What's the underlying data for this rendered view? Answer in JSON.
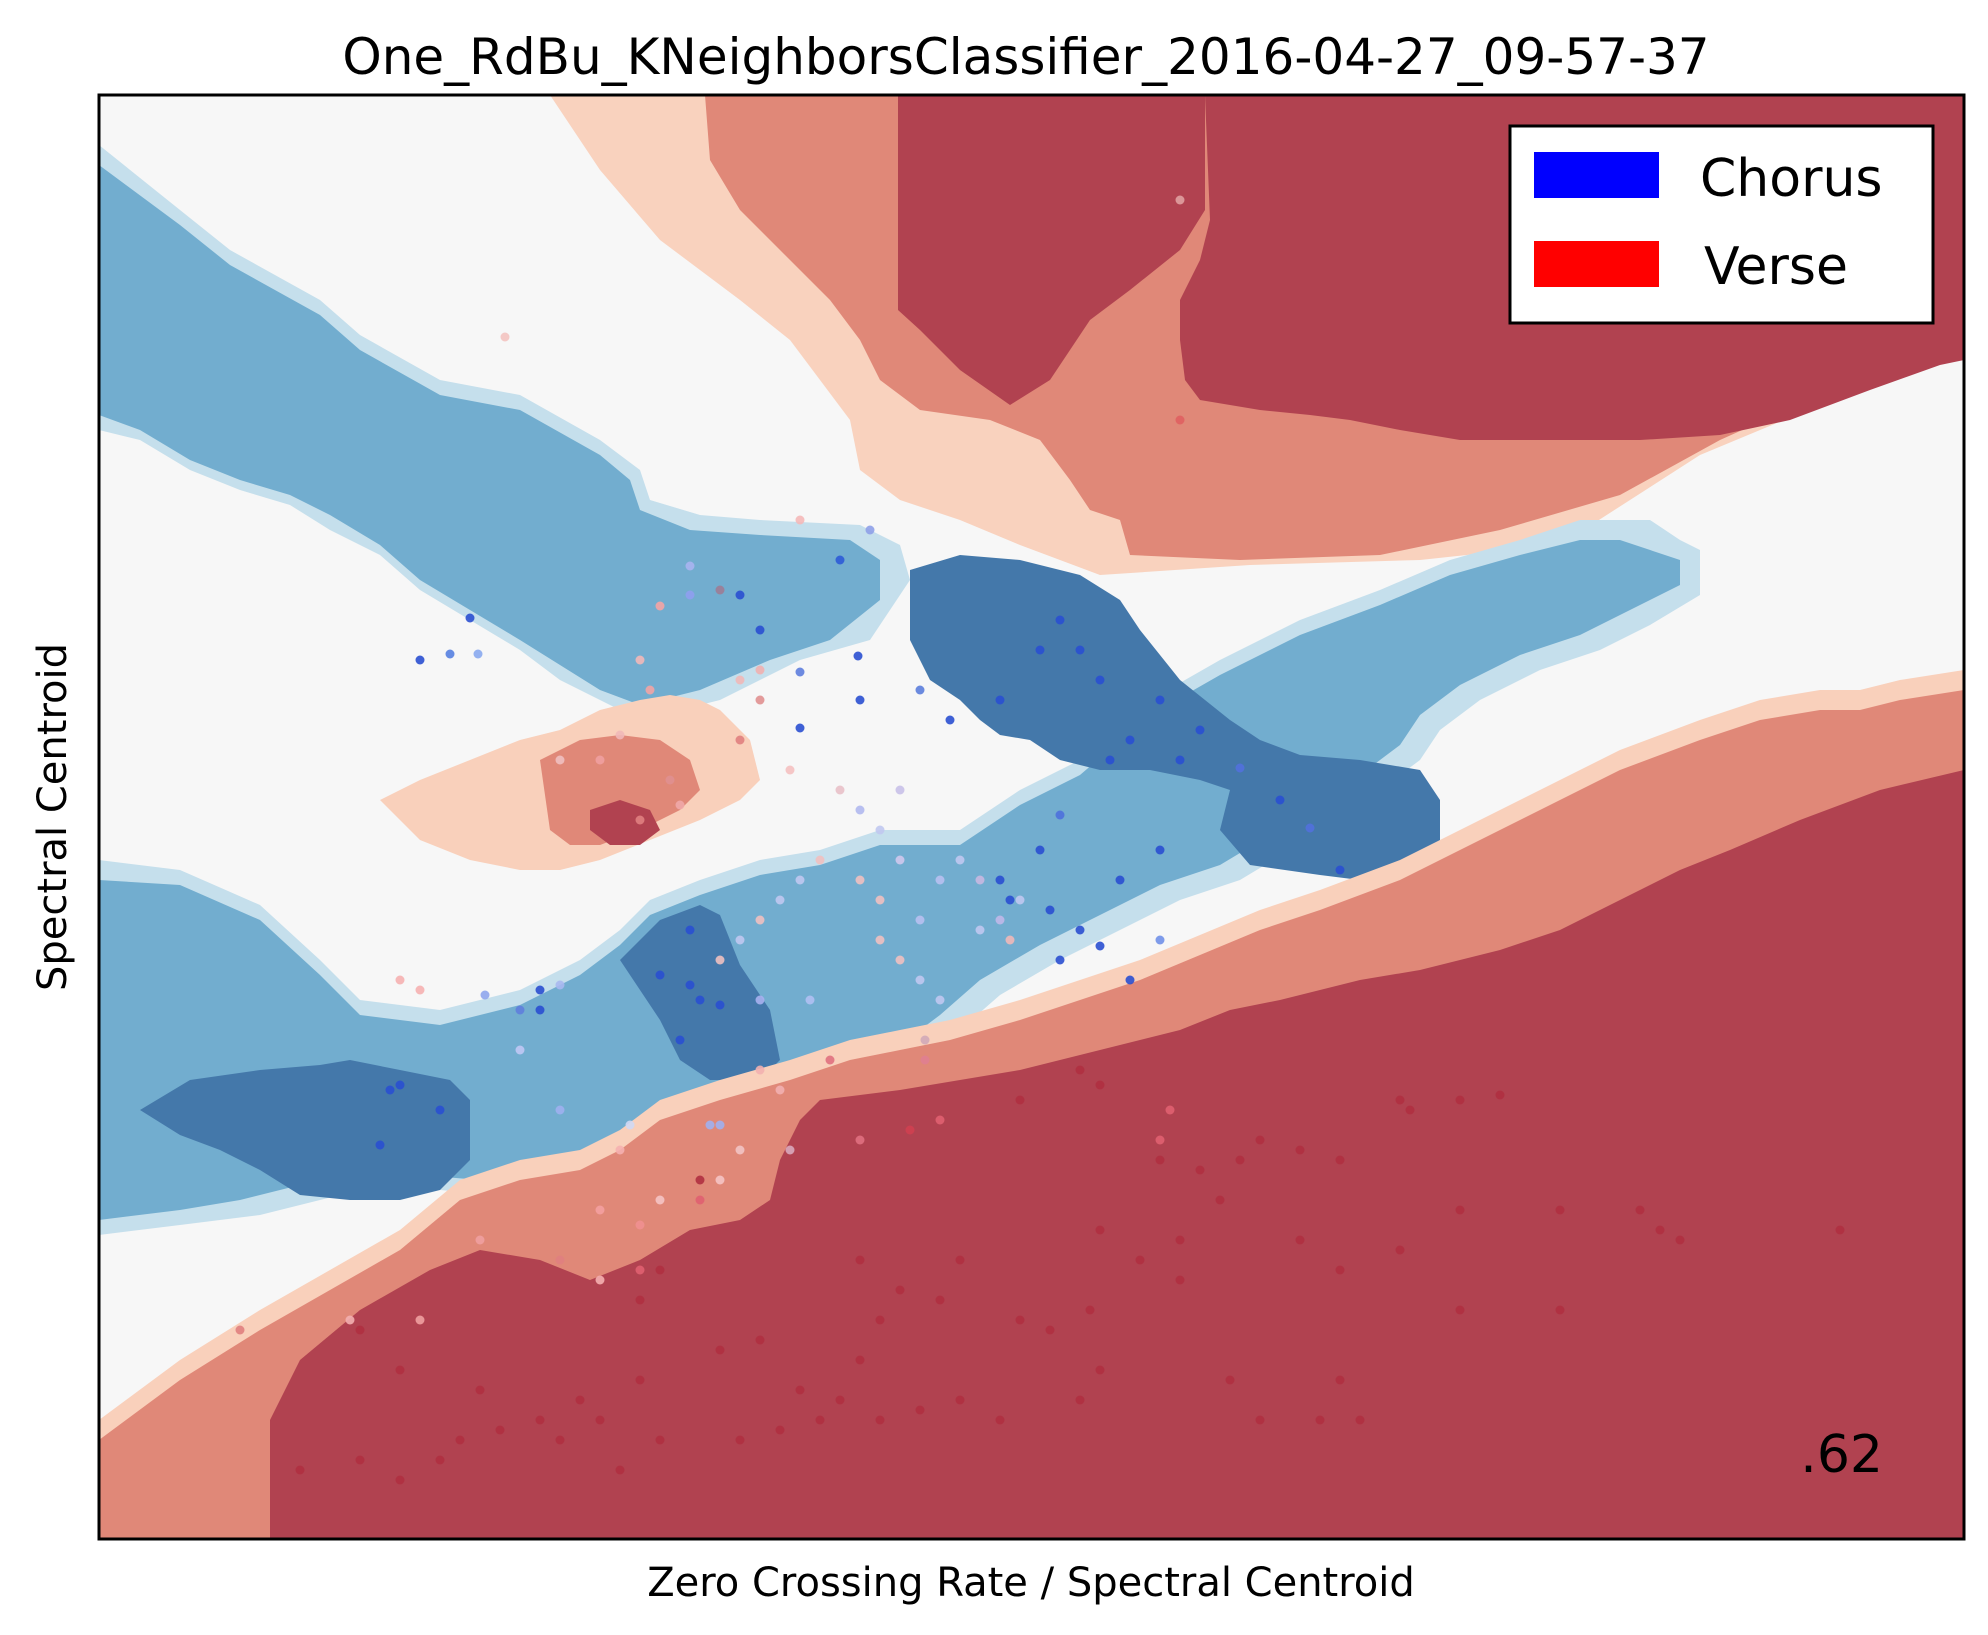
{
  "chart_data": {
    "type": "contour",
    "title": "One_RdBu_KNeighborsClassifier_2016-04-27_09-57-37",
    "xlabel": "Zero Crossing Rate / Spectral Centroid",
    "ylabel": "Spectral Centroid",
    "score": ".62",
    "colormap": "RdBu",
    "legend": {
      "position": "top-right",
      "entries": [
        {
          "label": "Chorus",
          "color": "#0000ff"
        },
        {
          "label": "Verse",
          "color": "#ff0000"
        }
      ]
    },
    "xticks": [],
    "yticks": [],
    "levels": {
      "strong_verse": "#b2182b",
      "mid_verse": "#d6604d",
      "weak_verse": "#f4a582",
      "neutral": "#f7f7f7",
      "weak_chorus": "#92c5de",
      "mid_chorus": "#4393c3",
      "strong_chorus": "#2166ac"
    }
  }
}
